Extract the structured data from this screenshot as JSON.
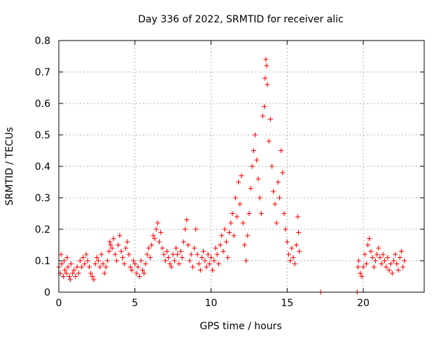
{
  "chart_data": {
    "type": "scatter",
    "title": "Day 336 of 2022, SRMTID for receiver alic",
    "xlabel": "GPS time / hours",
    "ylabel": "SRMTID / TECUs",
    "xlim": [
      0,
      24
    ],
    "ylim": [
      0,
      0.8
    ],
    "xticks": [
      0,
      5,
      10,
      15,
      20
    ],
    "yticks": [
      0,
      0.1,
      0.2,
      0.3,
      0.4,
      0.5,
      0.6,
      0.7,
      0.8
    ],
    "grid": true,
    "marker": "+",
    "colors": {
      "series": "#ff0000",
      "axis": "#000000",
      "grid": "#b0b0b0"
    },
    "series": [
      {
        "name": "SRMTID",
        "points": [
          [
            0.0,
            0.08
          ],
          [
            0.1,
            0.06
          ],
          [
            0.15,
            0.12
          ],
          [
            0.2,
            0.09
          ],
          [
            0.3,
            0.05
          ],
          [
            0.35,
            0.1
          ],
          [
            0.4,
            0.07
          ],
          [
            0.5,
            0.06
          ],
          [
            0.55,
            0.11
          ],
          [
            0.6,
            0.08
          ],
          [
            0.7,
            0.05
          ],
          [
            0.75,
            0.04
          ],
          [
            0.8,
            0.09
          ],
          [
            0.9,
            0.06
          ],
          [
            1.0,
            0.07
          ],
          [
            1.1,
            0.05
          ],
          [
            1.2,
            0.08
          ],
          [
            1.3,
            0.06
          ],
          [
            1.4,
            0.1
          ],
          [
            1.5,
            0.08
          ],
          [
            1.6,
            0.11
          ],
          [
            1.7,
            0.09
          ],
          [
            1.8,
            0.12
          ],
          [
            1.9,
            0.1
          ],
          [
            2.0,
            0.08
          ],
          [
            2.1,
            0.06
          ],
          [
            2.2,
            0.05
          ],
          [
            2.3,
            0.04
          ],
          [
            2.4,
            0.09
          ],
          [
            2.5,
            0.11
          ],
          [
            2.6,
            0.1
          ],
          [
            2.7,
            0.08
          ],
          [
            2.8,
            0.12
          ],
          [
            2.9,
            0.09
          ],
          [
            3.0,
            0.06
          ],
          [
            3.1,
            0.08
          ],
          [
            3.2,
            0.1
          ],
          [
            3.3,
            0.13
          ],
          [
            3.35,
            0.16
          ],
          [
            3.4,
            0.15
          ],
          [
            3.5,
            0.14
          ],
          [
            3.6,
            0.17
          ],
          [
            3.7,
            0.12
          ],
          [
            3.8,
            0.1
          ],
          [
            3.9,
            0.15
          ],
          [
            4.0,
            0.18
          ],
          [
            4.1,
            0.13
          ],
          [
            4.2,
            0.11
          ],
          [
            4.3,
            0.09
          ],
          [
            4.4,
            0.14
          ],
          [
            4.5,
            0.16
          ],
          [
            4.6,
            0.12
          ],
          [
            4.7,
            0.08
          ],
          [
            4.8,
            0.07
          ],
          [
            4.9,
            0.1
          ],
          [
            5.0,
            0.09
          ],
          [
            5.1,
            0.06
          ],
          [
            5.2,
            0.08
          ],
          [
            5.3,
            0.05
          ],
          [
            5.4,
            0.1
          ],
          [
            5.5,
            0.07
          ],
          [
            5.6,
            0.06
          ],
          [
            5.7,
            0.09
          ],
          [
            5.8,
            0.12
          ],
          [
            5.9,
            0.14
          ],
          [
            6.0,
            0.11
          ],
          [
            6.1,
            0.15
          ],
          [
            6.2,
            0.18
          ],
          [
            6.3,
            0.17
          ],
          [
            6.4,
            0.2
          ],
          [
            6.5,
            0.22
          ],
          [
            6.6,
            0.16
          ],
          [
            6.7,
            0.19
          ],
          [
            6.8,
            0.14
          ],
          [
            6.9,
            0.12
          ],
          [
            7.0,
            0.1
          ],
          [
            7.1,
            0.13
          ],
          [
            7.2,
            0.11
          ],
          [
            7.3,
            0.09
          ],
          [
            7.4,
            0.08
          ],
          [
            7.5,
            0.12
          ],
          [
            7.6,
            0.1
          ],
          [
            7.7,
            0.14
          ],
          [
            7.8,
            0.12
          ],
          [
            7.9,
            0.09
          ],
          [
            8.0,
            0.13
          ],
          [
            8.1,
            0.11
          ],
          [
            8.2,
            0.16
          ],
          [
            8.3,
            0.2
          ],
          [
            8.4,
            0.23
          ],
          [
            8.5,
            0.15
          ],
          [
            8.6,
            0.1
          ],
          [
            8.7,
            0.12
          ],
          [
            8.8,
            0.08
          ],
          [
            8.9,
            0.14
          ],
          [
            9.0,
            0.2
          ],
          [
            9.1,
            0.12
          ],
          [
            9.2,
            0.09
          ],
          [
            9.3,
            0.07
          ],
          [
            9.4,
            0.11
          ],
          [
            9.5,
            0.13
          ],
          [
            9.6,
            0.1
          ],
          [
            9.7,
            0.08
          ],
          [
            9.8,
            0.12
          ],
          [
            9.9,
            0.09
          ],
          [
            10.0,
            0.11
          ],
          [
            10.1,
            0.07
          ],
          [
            10.2,
            0.1
          ],
          [
            10.3,
            0.14
          ],
          [
            10.4,
            0.12
          ],
          [
            10.5,
            0.09
          ],
          [
            10.6,
            0.15
          ],
          [
            10.7,
            0.18
          ],
          [
            10.8,
            0.13
          ],
          [
            10.9,
            0.2
          ],
          [
            11.0,
            0.16
          ],
          [
            11.1,
            0.11
          ],
          [
            11.2,
            0.19
          ],
          [
            11.3,
            0.22
          ],
          [
            11.4,
            0.25
          ],
          [
            11.5,
            0.18
          ],
          [
            11.6,
            0.3
          ],
          [
            11.7,
            0.24
          ],
          [
            11.8,
            0.35
          ],
          [
            11.9,
            0.28
          ],
          [
            12.0,
            0.37
          ],
          [
            12.1,
            0.22
          ],
          [
            12.2,
            0.15
          ],
          [
            12.3,
            0.1
          ],
          [
            12.4,
            0.18
          ],
          [
            12.5,
            0.25
          ],
          [
            12.6,
            0.33
          ],
          [
            12.7,
            0.4
          ],
          [
            12.8,
            0.45
          ],
          [
            12.9,
            0.5
          ],
          [
            13.0,
            0.42
          ],
          [
            13.1,
            0.36
          ],
          [
            13.2,
            0.3
          ],
          [
            13.3,
            0.25
          ],
          [
            13.4,
            0.56
          ],
          [
            13.5,
            0.59
          ],
          [
            13.55,
            0.68
          ],
          [
            13.6,
            0.74
          ],
          [
            13.65,
            0.72
          ],
          [
            13.7,
            0.66
          ],
          [
            13.8,
            0.48
          ],
          [
            13.9,
            0.55
          ],
          [
            14.0,
            0.4
          ],
          [
            14.1,
            0.32
          ],
          [
            14.2,
            0.28
          ],
          [
            14.3,
            0.22
          ],
          [
            14.4,
            0.35
          ],
          [
            14.5,
            0.3
          ],
          [
            14.6,
            0.45
          ],
          [
            14.7,
            0.38
          ],
          [
            14.8,
            0.25
          ],
          [
            14.9,
            0.2
          ],
          [
            15.0,
            0.16
          ],
          [
            15.1,
            0.12
          ],
          [
            15.2,
            0.1
          ],
          [
            15.3,
            0.14
          ],
          [
            15.4,
            0.11
          ],
          [
            15.5,
            0.09
          ],
          [
            15.6,
            0.15
          ],
          [
            15.7,
            0.24
          ],
          [
            15.75,
            0.19
          ],
          [
            15.8,
            0.13
          ],
          [
            17.2,
            0.0
          ],
          [
            19.6,
            0.0
          ],
          [
            19.65,
            0.08
          ],
          [
            19.7,
            0.1
          ],
          [
            19.8,
            0.06
          ],
          [
            19.9,
            0.05
          ],
          [
            20.0,
            0.08
          ],
          [
            20.1,
            0.12
          ],
          [
            20.2,
            0.09
          ],
          [
            20.3,
            0.15
          ],
          [
            20.4,
            0.17
          ],
          [
            20.5,
            0.13
          ],
          [
            20.6,
            0.11
          ],
          [
            20.7,
            0.08
          ],
          [
            20.8,
            0.1
          ],
          [
            20.9,
            0.12
          ],
          [
            21.0,
            0.14
          ],
          [
            21.1,
            0.11
          ],
          [
            21.2,
            0.09
          ],
          [
            21.3,
            0.12
          ],
          [
            21.4,
            0.1
          ],
          [
            21.5,
            0.08
          ],
          [
            21.6,
            0.11
          ],
          [
            21.7,
            0.07
          ],
          [
            21.8,
            0.09
          ],
          [
            21.9,
            0.06
          ],
          [
            22.0,
            0.1
          ],
          [
            22.1,
            0.12
          ],
          [
            22.2,
            0.09
          ],
          [
            22.3,
            0.07
          ],
          [
            22.4,
            0.11
          ],
          [
            22.5,
            0.13
          ],
          [
            22.6,
            0.08
          ],
          [
            22.7,
            0.1
          ]
        ]
      }
    ]
  }
}
